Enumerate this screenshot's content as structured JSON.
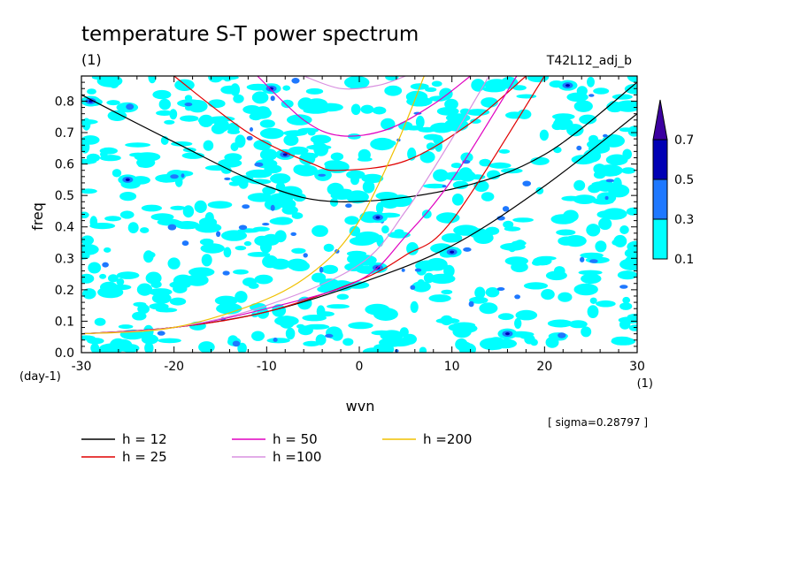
{
  "chart_data": {
    "type": "heatmap",
    "title": "temperature S-T power spectrum",
    "subtitle_left": "(1)",
    "subtitle_right": "T42L12_adj_b",
    "xlabel": "wvn",
    "x_unit": "(1)",
    "ylabel": "freq",
    "y_unit": "(day-1)",
    "xlim": [
      -30,
      30
    ],
    "ylim": [
      0,
      0.88
    ],
    "x_ticks": [
      "-30",
      "-20",
      "-10",
      "0",
      "10",
      "20",
      "30"
    ],
    "x_tick_values": [
      -30,
      -20,
      -10,
      0,
      10,
      20,
      30
    ],
    "y_ticks": [
      "0.0",
      "0.1",
      "0.2",
      "0.3",
      "0.4",
      "0.5",
      "0.6",
      "0.7",
      "0.8"
    ],
    "y_tick_values": [
      0.0,
      0.1,
      0.2,
      0.3,
      0.4,
      0.5,
      0.6,
      0.7,
      0.8
    ],
    "sigma_label": "[ sigma=0.28797 ]",
    "colorbar": {
      "levels": [
        "0.1",
        "0.3",
        "0.5",
        "0.7"
      ],
      "level_values": [
        0.1,
        0.3,
        0.5,
        0.7
      ],
      "colors": [
        "#00ffff",
        "#1e78ff",
        "#0000b4",
        "#3c00a0"
      ]
    },
    "series": [
      {
        "name": "h = 12",
        "color": "#000000"
      },
      {
        "name": "h = 25",
        "color": "#e00000"
      },
      {
        "name": "h = 50",
        "color": "#e000c0"
      },
      {
        "name": "h =100",
        "color": "#d890e0"
      },
      {
        "name": "h =200",
        "color": "#f0c000"
      }
    ],
    "curves": [
      {
        "series": "h = 12",
        "x": [
          -30,
          -20,
          -10,
          -2,
          10,
          20,
          30
        ],
        "y": [
          0.82,
          0.67,
          0.53,
          0.48,
          0.52,
          0.63,
          0.86
        ]
      },
      {
        "series": "h = 12",
        "x": [
          -30,
          -20,
          -10,
          0,
          10,
          20,
          30
        ],
        "y": [
          0.06,
          0.08,
          0.13,
          0.22,
          0.34,
          0.53,
          0.76
        ]
      },
      {
        "series": "h = 25",
        "x": [
          -20,
          -12,
          -5,
          -2,
          5,
          12,
          18
        ],
        "y": [
          0.88,
          0.7,
          0.6,
          0.58,
          0.61,
          0.73,
          0.88
        ]
      },
      {
        "series": "h = 25",
        "x": [
          -30,
          -20,
          -10,
          0,
          5,
          10,
          20
        ],
        "y": [
          0.06,
          0.08,
          0.13,
          0.23,
          0.31,
          0.42,
          0.88
        ]
      },
      {
        "series": "h = 50",
        "x": [
          -11,
          -6,
          -2,
          3,
          8,
          12
        ],
        "y": [
          0.88,
          0.74,
          0.69,
          0.71,
          0.79,
          0.88
        ]
      },
      {
        "series": "h = 50",
        "x": [
          -30,
          -20,
          -10,
          0,
          5,
          10,
          17
        ],
        "y": [
          0.06,
          0.08,
          0.14,
          0.23,
          0.37,
          0.55,
          0.88
        ]
      },
      {
        "series": "h =100",
        "x": [
          -6,
          -2,
          2,
          5
        ],
        "y": [
          0.88,
          0.84,
          0.85,
          0.88
        ]
      },
      {
        "series": "h =100",
        "x": [
          -30,
          -20,
          -10,
          0,
          5,
          10,
          14
        ],
        "y": [
          0.06,
          0.08,
          0.15,
          0.28,
          0.45,
          0.68,
          0.88
        ]
      },
      {
        "series": "h =200",
        "x": [
          -30,
          -20,
          -10,
          -4,
          0,
          4,
          7
        ],
        "y": [
          0.06,
          0.08,
          0.17,
          0.28,
          0.42,
          0.66,
          0.88
        ]
      }
    ],
    "hotspots": [
      {
        "x": 10,
        "y": 0.32,
        "level": 0.5
      },
      {
        "x": 2,
        "y": 0.43,
        "level": 0.5
      },
      {
        "x": -25,
        "y": 0.55,
        "level": 0.5
      },
      {
        "x": -8,
        "y": 0.63,
        "level": 0.5
      },
      {
        "x": -9.5,
        "y": 0.84,
        "level": 0.5
      },
      {
        "x": -29,
        "y": 0.8,
        "level": 0.5
      },
      {
        "x": 22.5,
        "y": 0.85,
        "level": 0.5
      },
      {
        "x": 2,
        "y": 0.27,
        "level": 0.5
      },
      {
        "x": 16,
        "y": 0.06,
        "level": 0.5
      }
    ]
  }
}
